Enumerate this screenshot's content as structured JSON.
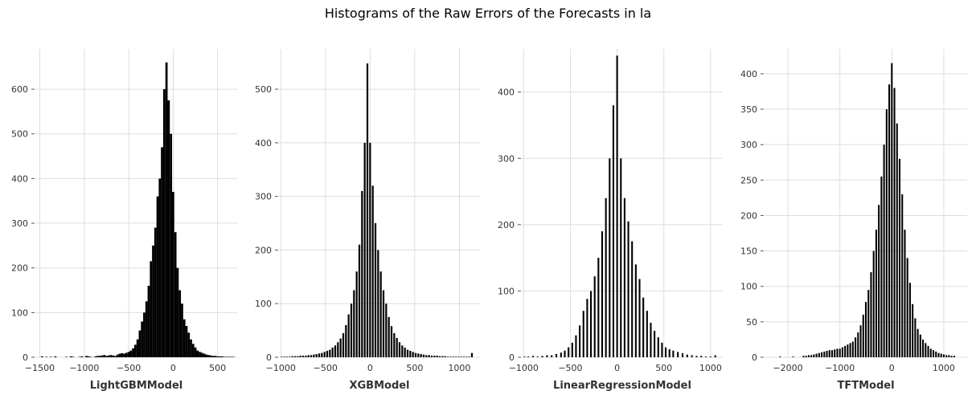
{
  "figure": {
    "title": "Histograms of the Raw Errors of the Forecasts in la"
  },
  "chart_data": [
    {
      "type": "bar",
      "xlabel": "LightGBMModel",
      "ylabel": "",
      "xlim": [
        -1550,
        720
      ],
      "ylim": [
        0,
        690
      ],
      "xticks": [
        -1500,
        -1000,
        -500,
        0,
        500
      ],
      "yticks": [
        0,
        100,
        200,
        300,
        400,
        500,
        600
      ],
      "bin_width": 25,
      "x": [
        -1475,
        -1425,
        -1375,
        -1325,
        -1200,
        -1150,
        -1125,
        -1050,
        -1025,
        -975,
        -950,
        -925,
        -875,
        -850,
        -825,
        -800,
        -775,
        -750,
        -725,
        -700,
        -675,
        -650,
        -625,
        -600,
        -575,
        -550,
        -525,
        -500,
        -475,
        -450,
        -425,
        -400,
        -375,
        -350,
        -325,
        -300,
        -275,
        -250,
        -225,
        -200,
        -175,
        -150,
        -125,
        -100,
        -75,
        -50,
        -25,
        0,
        25,
        50,
        75,
        100,
        125,
        150,
        175,
        200,
        225,
        250,
        275,
        300,
        325,
        350,
        375,
        400,
        425,
        450,
        475,
        500,
        525,
        550,
        575,
        600,
        625,
        650,
        675
      ],
      "values": [
        2,
        1,
        1,
        2,
        1,
        2,
        1,
        1,
        2,
        3,
        2,
        1,
        2,
        3,
        3,
        4,
        5,
        3,
        4,
        5,
        4,
        3,
        6,
        8,
        9,
        8,
        10,
        12,
        15,
        20,
        28,
        40,
        60,
        80,
        100,
        125,
        160,
        215,
        250,
        290,
        360,
        400,
        470,
        600,
        660,
        575,
        500,
        370,
        280,
        200,
        150,
        120,
        85,
        70,
        55,
        40,
        30,
        22,
        15,
        12,
        10,
        8,
        6,
        5,
        4,
        3,
        3,
        2,
        2,
        2,
        1,
        1,
        1,
        1,
        1
      ]
    },
    {
      "type": "bar",
      "xlabel": "XGBModel",
      "ylabel": "",
      "xlim": [
        -1020,
        1230
      ],
      "ylim": [
        0,
        575
      ],
      "xticks": [
        -1000,
        -500,
        0,
        500,
        1000
      ],
      "yticks": [
        0,
        100,
        200,
        300,
        400,
        500
      ],
      "bin_width": 20,
      "x": [
        -990,
        -960,
        -930,
        -900,
        -870,
        -840,
        -810,
        -780,
        -750,
        -720,
        -690,
        -660,
        -630,
        -600,
        -570,
        -540,
        -510,
        -480,
        -450,
        -420,
        -390,
        -360,
        -330,
        -300,
        -270,
        -240,
        -210,
        -180,
        -150,
        -120,
        -90,
        -60,
        -30,
        0,
        30,
        60,
        90,
        120,
        150,
        180,
        210,
        240,
        270,
        300,
        330,
        360,
        390,
        420,
        450,
        480,
        510,
        540,
        570,
        600,
        630,
        660,
        690,
        720,
        750,
        780,
        810,
        840,
        870,
        900,
        930,
        960,
        990,
        1020,
        1050,
        1080,
        1110,
        1140
      ],
      "values": [
        1,
        1,
        1,
        1,
        2,
        2,
        2,
        3,
        3,
        3,
        4,
        4,
        5,
        6,
        7,
        8,
        10,
        12,
        14,
        18,
        22,
        28,
        35,
        45,
        60,
        80,
        100,
        125,
        160,
        210,
        310,
        400,
        548,
        400,
        320,
        250,
        200,
        160,
        125,
        100,
        75,
        58,
        45,
        36,
        28,
        22,
        18,
        14,
        12,
        10,
        8,
        7,
        6,
        5,
        4,
        4,
        3,
        3,
        3,
        2,
        2,
        2,
        1,
        1,
        1,
        1,
        1,
        1,
        1,
        1,
        1,
        8
      ]
    },
    {
      "type": "bar",
      "xlabel": "LinearRegressionModel",
      "ylabel": "",
      "xlim": [
        -1020,
        1130
      ],
      "ylim": [
        0,
        465
      ],
      "xticks": [
        -1000,
        -500,
        0,
        500,
        1000
      ],
      "yticks": [
        0,
        100,
        200,
        300,
        400
      ],
      "bin_width": 18,
      "x": [
        -990,
        -950,
        -900,
        -850,
        -800,
        -750,
        -700,
        -650,
        -600,
        -560,
        -520,
        -480,
        -440,
        -400,
        -360,
        -320,
        -280,
        -240,
        -200,
        -160,
        -120,
        -80,
        -40,
        0,
        40,
        80,
        120,
        160,
        200,
        240,
        280,
        320,
        360,
        400,
        440,
        480,
        520,
        560,
        600,
        650,
        700,
        750,
        800,
        850,
        900,
        950,
        1000,
        1050
      ],
      "values": [
        1,
        1,
        2,
        1,
        2,
        3,
        3,
        5,
        7,
        10,
        15,
        22,
        33,
        48,
        70,
        88,
        100,
        122,
        150,
        190,
        240,
        300,
        380,
        455,
        300,
        240,
        205,
        175,
        140,
        118,
        90,
        70,
        52,
        40,
        30,
        22,
        15,
        12,
        10,
        8,
        6,
        4,
        3,
        2,
        2,
        1,
        1,
        3
      ]
    },
    {
      "type": "bar",
      "xlabel": "TFTModel",
      "ylabel": "",
      "xlim": [
        -2450,
        1450
      ],
      "ylim": [
        0,
        435
      ],
      "xticks": [
        -2000,
        -1000,
        0,
        1000
      ],
      "yticks": [
        0,
        50,
        100,
        150,
        200,
        250,
        300,
        350,
        400
      ],
      "bin_width": 32,
      "x": [
        -2150,
        -1900,
        -1700,
        -1650,
        -1600,
        -1550,
        -1500,
        -1450,
        -1400,
        -1350,
        -1300,
        -1250,
        -1200,
        -1150,
        -1100,
        -1050,
        -1000,
        -950,
        -900,
        -850,
        -800,
        -750,
        -700,
        -650,
        -600,
        -550,
        -500,
        -450,
        -400,
        -350,
        -300,
        -250,
        -200,
        -150,
        -100,
        -50,
        0,
        50,
        100,
        150,
        200,
        250,
        300,
        350,
        400,
        450,
        500,
        550,
        600,
        650,
        700,
        750,
        800,
        850,
        900,
        950,
        1000,
        1050,
        1100,
        1150,
        1200
      ],
      "values": [
        1,
        1,
        2,
        2,
        3,
        3,
        4,
        5,
        6,
        7,
        8,
        9,
        10,
        10,
        11,
        12,
        12,
        14,
        16,
        18,
        20,
        22,
        28,
        35,
        45,
        60,
        78,
        95,
        120,
        150,
        180,
        215,
        255,
        300,
        350,
        385,
        415,
        380,
        330,
        280,
        230,
        180,
        140,
        105,
        75,
        55,
        40,
        32,
        25,
        20,
        16,
        12,
        10,
        8,
        6,
        5,
        4,
        3,
        3,
        2,
        2
      ]
    }
  ]
}
